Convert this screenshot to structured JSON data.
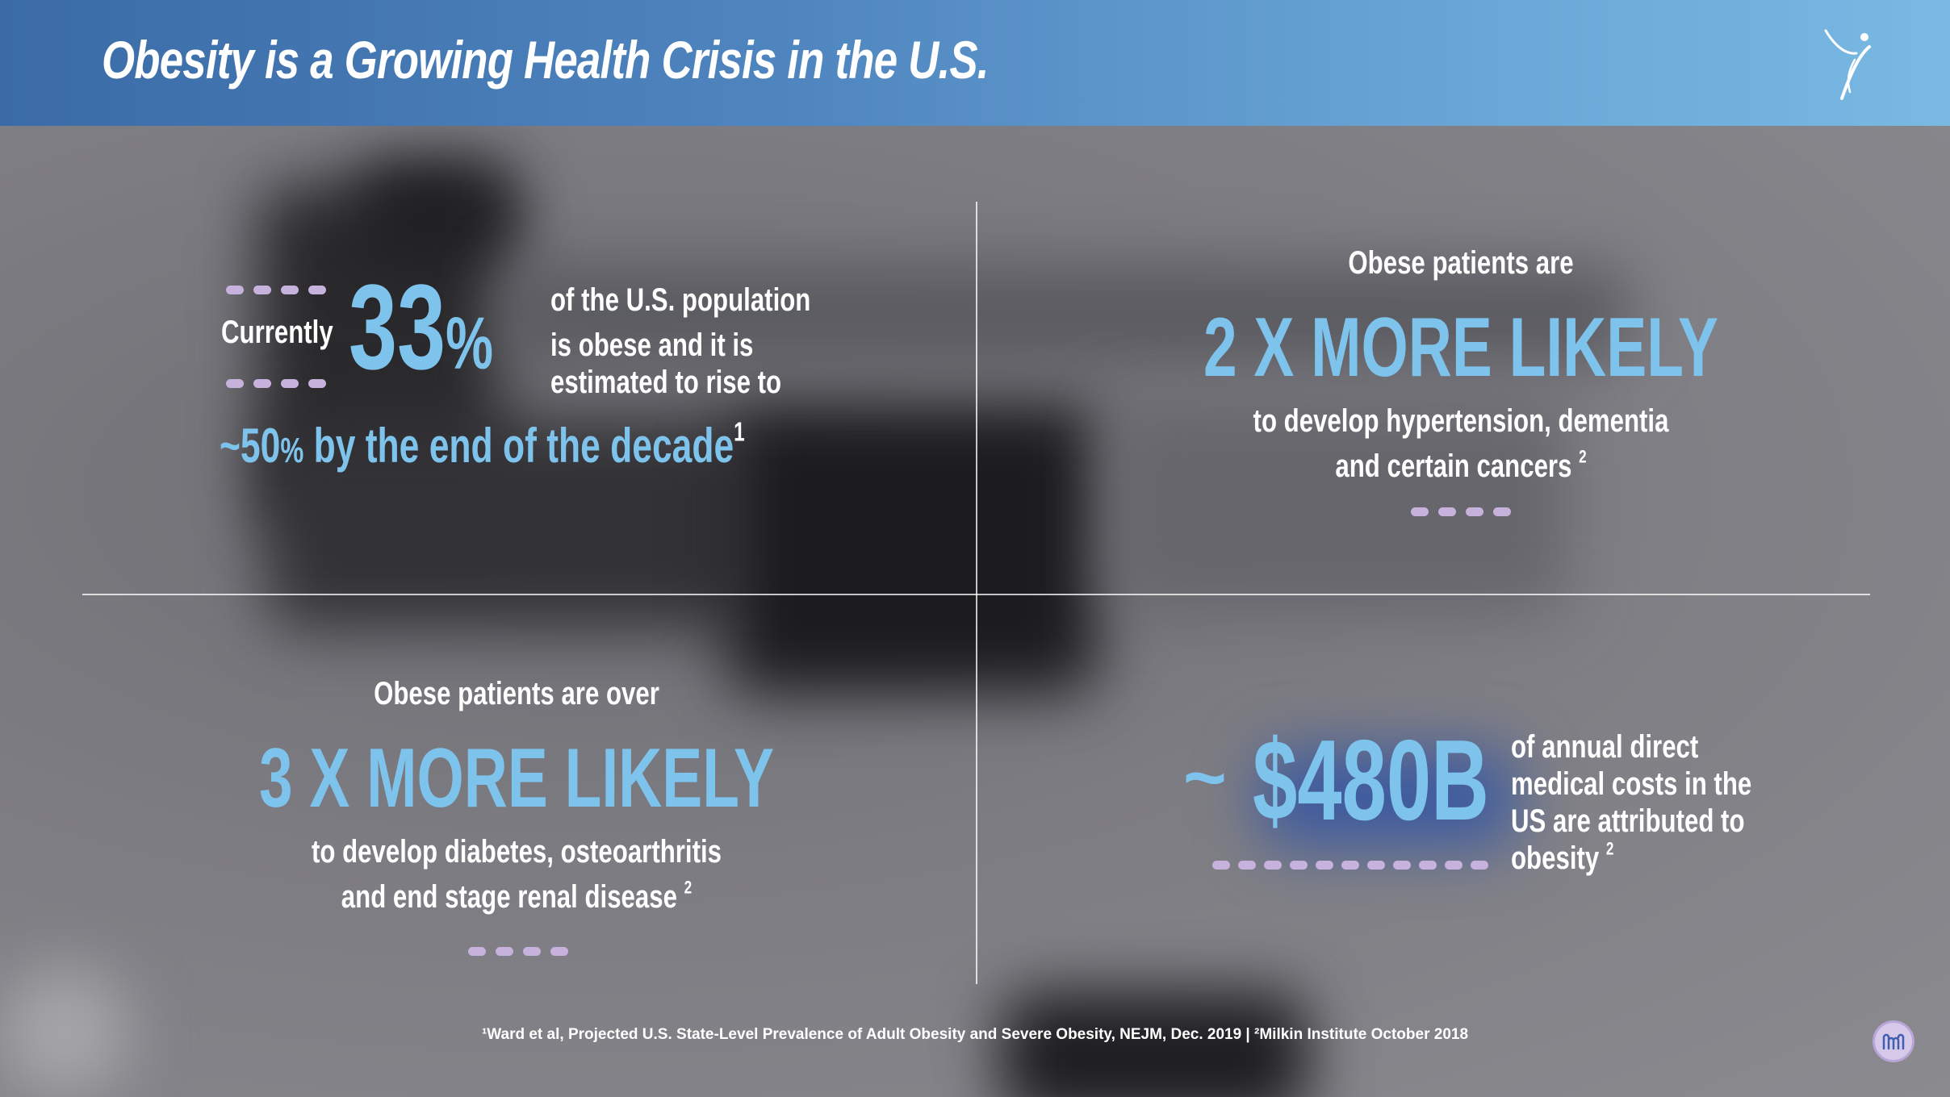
{
  "slide": {
    "title": "Obesity is a Growing Health Crisis in the U.S.",
    "logo_icon": "figure-logo-icon"
  },
  "colors": {
    "header_start": "#3a6ba6",
    "header_end": "#79b9e3",
    "accent_blue": "#7ec3ec",
    "dots": "#c7b2dd",
    "text": "#ffffff"
  },
  "stat_top_left": {
    "prefix": "Currently",
    "big_number": "33",
    "percent": "%",
    "line1": "of the U.S. population",
    "line2": "is obese and it is",
    "line3": "estimated to rise to",
    "tilde": "~",
    "projection_number": "50",
    "projection_pct": "%",
    "projection_rest": " by the end of the decade",
    "ref": "1"
  },
  "stat_top_right": {
    "intro": "Obese patients are",
    "headline": "2 X MORE LIKELY",
    "line1": "to develop hypertension, dementia",
    "line2": "and certain cancers",
    "ref": "2"
  },
  "stat_bottom_left": {
    "intro": "Obese patients are over",
    "headline": "3 X MORE LIKELY",
    "line1": "to develop diabetes, osteoarthritis",
    "line2": "and end stage renal disease",
    "ref": "2"
  },
  "stat_bottom_right": {
    "tilde": "~",
    "amount": "$480B",
    "line1": "of annual direct",
    "line2": "medical costs in the",
    "line3": "US are attributed to",
    "line4": "obesity",
    "ref": "2"
  },
  "footer": {
    "footnote": "¹Ward et al, Projected U.S. State-Level Prevalence of Adult Obesity and Severe Obesity, NEJM, Dec. 2019 | ²Milkin Institute October 2018",
    "badge_icon": "company-badge-icon"
  }
}
